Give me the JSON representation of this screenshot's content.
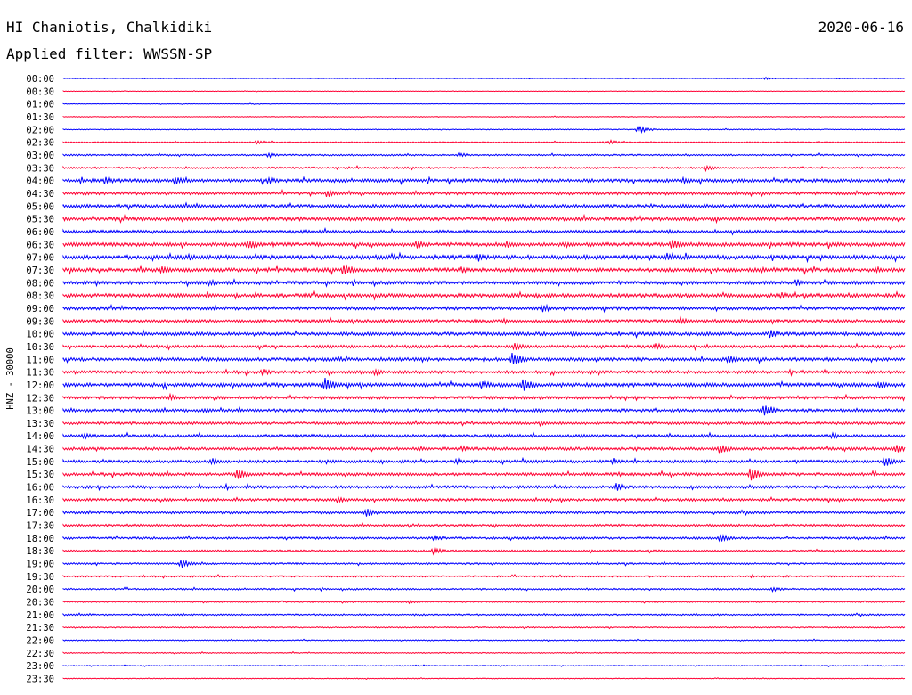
{
  "header": {
    "station": "HI Chaniotis, Chalkidiki",
    "date": "2020-06-16",
    "filter": "Applied filter: WWSSN-SP"
  },
  "colors": {
    "trace_even": "#0000ff",
    "trace_odd": "#ff0033",
    "background": "#ffffff",
    "text": "#000000"
  },
  "chart_data": {
    "type": "line",
    "title": "HI Chaniotis, Chalkidiki",
    "subtitle": "Applied filter: WWSSN-SP",
    "date": "2020-06-16",
    "ylabel": "HNZ - 30000",
    "grid": false,
    "trace_minutes": 30,
    "row_labels": [
      "00:00",
      "00:30",
      "01:00",
      "01:30",
      "02:00",
      "02:30",
      "03:00",
      "03:30",
      "04:00",
      "04:30",
      "05:00",
      "05:30",
      "06:00",
      "06:30",
      "07:00",
      "07:30",
      "08:00",
      "08:30",
      "09:00",
      "09:30",
      "10:00",
      "10:30",
      "11:00",
      "11:30",
      "12:00",
      "12:30",
      "13:00",
      "13:30",
      "14:00",
      "14:30",
      "15:00",
      "15:30",
      "16:00",
      "16:30",
      "17:00",
      "17:30",
      "18:00",
      "18:30",
      "19:00",
      "19:30",
      "20:00",
      "20:30",
      "21:00",
      "21:30",
      "22:00",
      "22:30",
      "23:00",
      "23:30"
    ],
    "noise_level": [
      0.3,
      0.3,
      0.3,
      0.4,
      0.5,
      0.7,
      0.9,
      1.0,
      1.8,
      1.6,
      1.8,
      2.0,
      1.6,
      2.0,
      2.2,
      2.0,
      1.8,
      2.0,
      1.8,
      1.6,
      1.8,
      1.6,
      1.8,
      1.6,
      2.0,
      1.6,
      1.6,
      1.4,
      1.6,
      1.6,
      1.6,
      1.6,
      1.6,
      1.4,
      1.4,
      1.2,
      1.2,
      1.0,
      1.0,
      0.9,
      0.9,
      0.7,
      0.9,
      0.7,
      0.6,
      0.6,
      0.5,
      0.4
    ],
    "events": [
      {
        "row": 0,
        "minute": 25.0,
        "amp": 1.5
      },
      {
        "row": 4,
        "minute": 20.5,
        "amp": 4.5
      },
      {
        "row": 5,
        "minute": 6.9,
        "amp": 2.5
      },
      {
        "row": 5,
        "minute": 19.5,
        "amp": 2.5
      },
      {
        "row": 6,
        "minute": 7.3,
        "amp": 3
      },
      {
        "row": 6,
        "minute": 14.1,
        "amp": 3
      },
      {
        "row": 7,
        "minute": 22.9,
        "amp": 3.5
      },
      {
        "row": 8,
        "minute": 1.5,
        "amp": 5
      },
      {
        "row": 8,
        "minute": 4.0,
        "amp": 5
      },
      {
        "row": 8,
        "minute": 7.3,
        "amp": 4
      },
      {
        "row": 8,
        "minute": 22.1,
        "amp": 4
      },
      {
        "row": 9,
        "minute": 9.4,
        "amp": 5
      },
      {
        "row": 12,
        "minute": 8.5,
        "amp": 3
      },
      {
        "row": 13,
        "minute": 6.6,
        "amp": 6
      },
      {
        "row": 13,
        "minute": 12.6,
        "amp": 5
      },
      {
        "row": 13,
        "minute": 15.8,
        "amp": 4
      },
      {
        "row": 13,
        "minute": 21.7,
        "amp": 7
      },
      {
        "row": 14,
        "minute": 4.5,
        "amp": 4
      },
      {
        "row": 14,
        "minute": 14.8,
        "amp": 5
      },
      {
        "row": 14,
        "minute": 21.5,
        "amp": 4
      },
      {
        "row": 15,
        "minute": 3.5,
        "amp": 5
      },
      {
        "row": 15,
        "minute": 10.0,
        "amp": 8
      },
      {
        "row": 15,
        "minute": 14.2,
        "amp": 4
      },
      {
        "row": 15,
        "minute": 29.0,
        "amp": 4
      },
      {
        "row": 16,
        "minute": 5.2,
        "amp": 4
      },
      {
        "row": 16,
        "minute": 26.1,
        "amp": 5
      },
      {
        "row": 17,
        "minute": 25.6,
        "amp": 4
      },
      {
        "row": 18,
        "minute": 17.1,
        "amp": 5
      },
      {
        "row": 19,
        "minute": 22.0,
        "amp": 4
      },
      {
        "row": 20,
        "minute": 25.2,
        "amp": 5
      },
      {
        "row": 21,
        "minute": 16.1,
        "amp": 5
      },
      {
        "row": 21,
        "minute": 21.1,
        "amp": 4
      },
      {
        "row": 22,
        "minute": 16.0,
        "amp": 9
      },
      {
        "row": 22,
        "minute": 23.7,
        "amp": 5
      },
      {
        "row": 23,
        "minute": 7.1,
        "amp": 4
      },
      {
        "row": 23,
        "minute": 11.1,
        "amp": 4
      },
      {
        "row": 24,
        "minute": 9.3,
        "amp": 9
      },
      {
        "row": 24,
        "minute": 14.9,
        "amp": 6
      },
      {
        "row": 24,
        "minute": 16.4,
        "amp": 8
      },
      {
        "row": 24,
        "minute": 29.1,
        "amp": 5
      },
      {
        "row": 25,
        "minute": 3.8,
        "amp": 4
      },
      {
        "row": 26,
        "minute": 5.0,
        "amp": 3
      },
      {
        "row": 26,
        "minute": 25.0,
        "amp": 8
      },
      {
        "row": 27,
        "minute": 17.0,
        "amp": 3
      },
      {
        "row": 28,
        "minute": 0.7,
        "amp": 4
      },
      {
        "row": 28,
        "minute": 27.4,
        "amp": 4
      },
      {
        "row": 29,
        "minute": 14.2,
        "amp": 4
      },
      {
        "row": 29,
        "minute": 23.4,
        "amp": 6
      },
      {
        "row": 29,
        "minute": 29.7,
        "amp": 5
      },
      {
        "row": 30,
        "minute": 5.3,
        "amp": 4
      },
      {
        "row": 30,
        "minute": 14.0,
        "amp": 4
      },
      {
        "row": 30,
        "minute": 19.6,
        "amp": 4
      },
      {
        "row": 30,
        "minute": 29.3,
        "amp": 6
      },
      {
        "row": 31,
        "minute": 6.2,
        "amp": 7
      },
      {
        "row": 31,
        "minute": 24.5,
        "amp": 8
      },
      {
        "row": 32,
        "minute": 19.7,
        "amp": 5
      },
      {
        "row": 33,
        "minute": 9.8,
        "amp": 4
      },
      {
        "row": 34,
        "minute": 10.8,
        "amp": 5
      },
      {
        "row": 36,
        "minute": 13.2,
        "amp": 4
      },
      {
        "row": 36,
        "minute": 23.4,
        "amp": 5
      },
      {
        "row": 37,
        "minute": 13.2,
        "amp": 4
      },
      {
        "row": 38,
        "minute": 4.2,
        "amp": 5
      },
      {
        "row": 40,
        "minute": 25.3,
        "amp": 3
      },
      {
        "row": 41,
        "minute": 12.3,
        "amp": 2
      }
    ]
  }
}
